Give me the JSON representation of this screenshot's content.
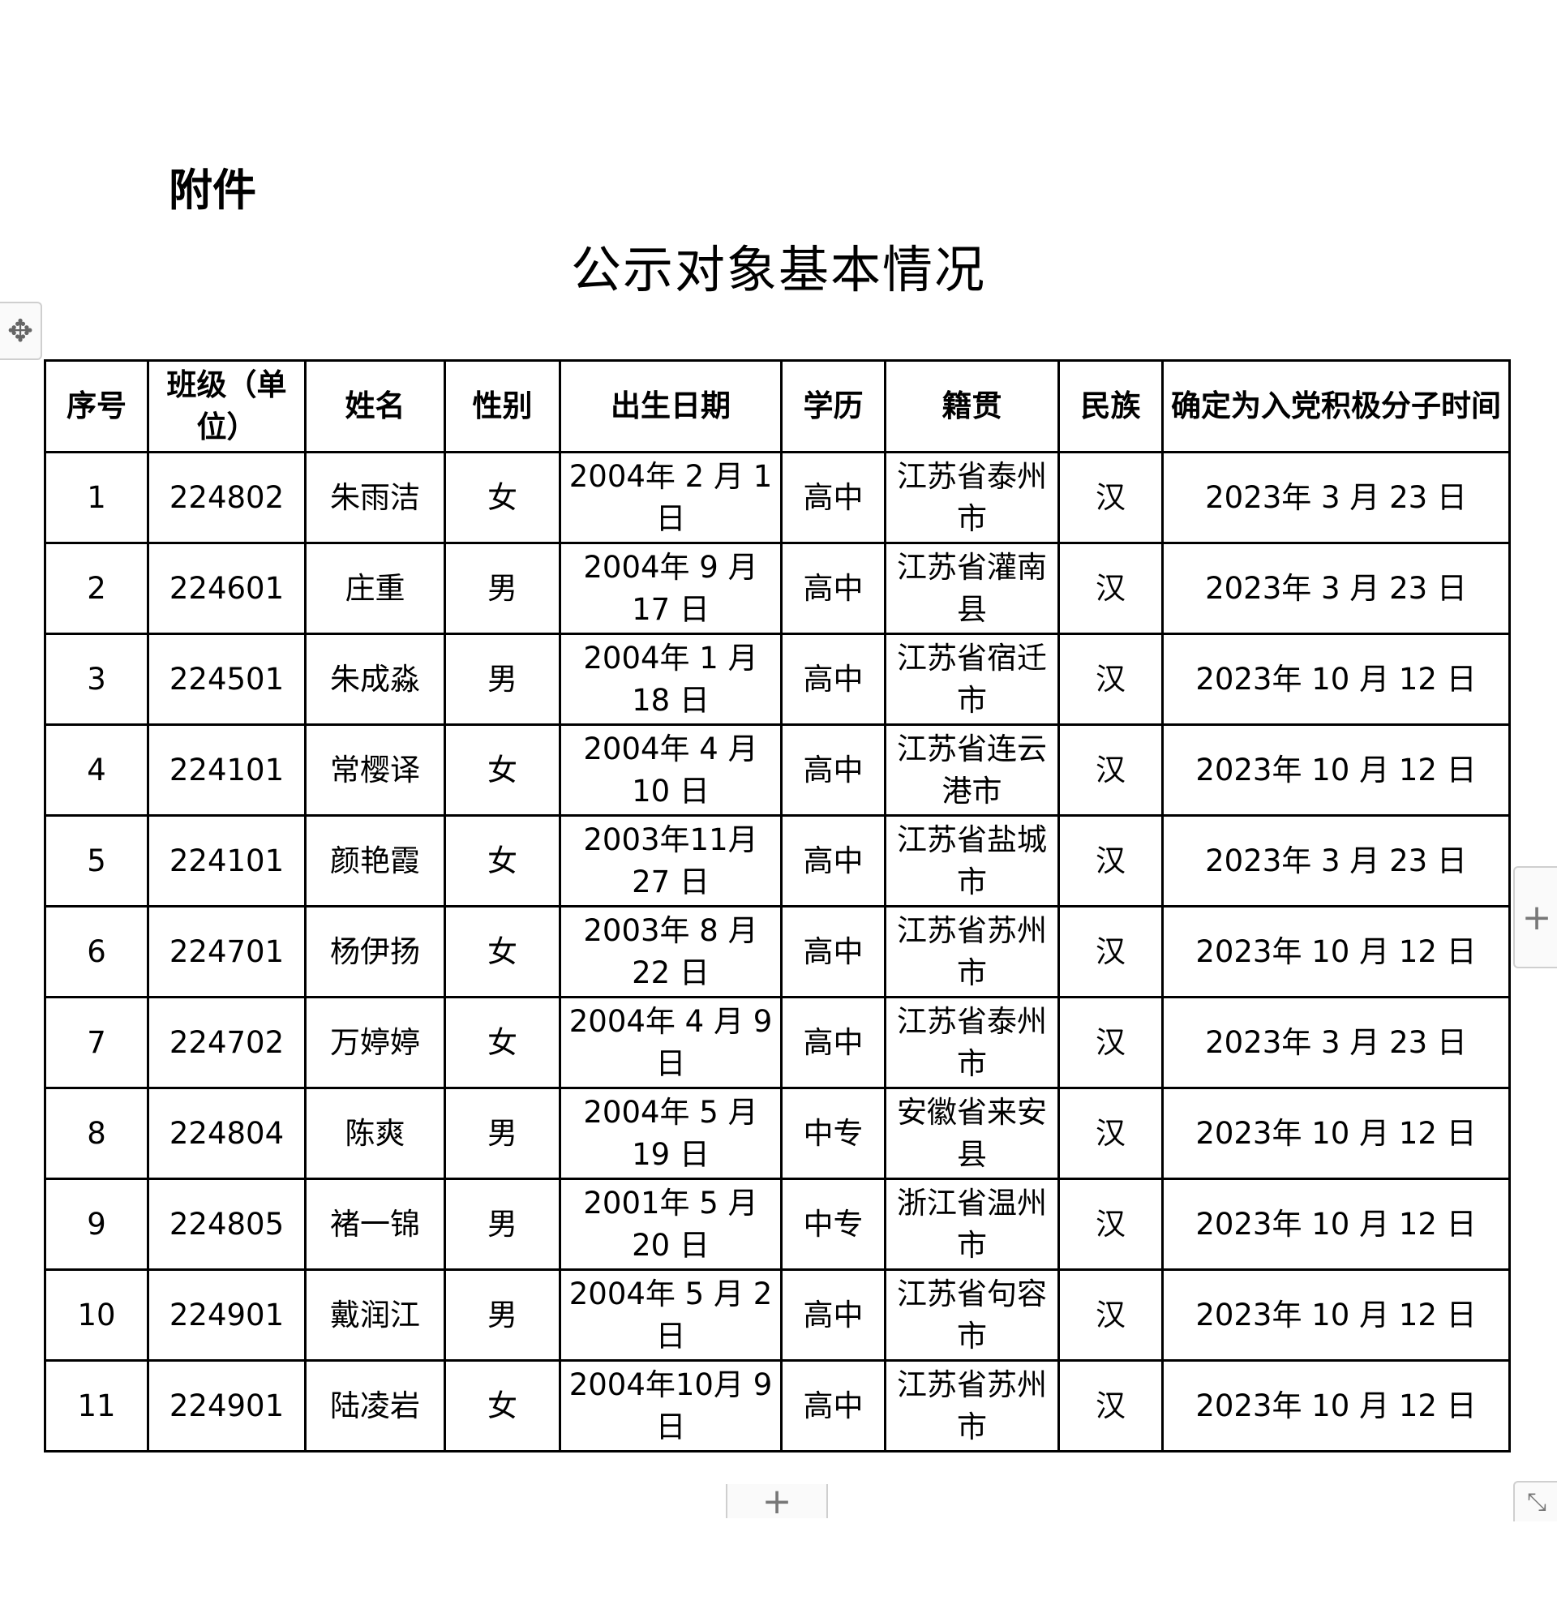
{
  "document": {
    "attachment_label": "附件",
    "title": "公示对象基本情况"
  },
  "table": {
    "headers": [
      "序号",
      "班级（单位）",
      "姓名",
      "性别",
      "出生日期",
      "学历",
      "籍贯",
      "民族",
      "确定为入党积极分子时间"
    ],
    "rows": [
      [
        "1",
        "224802",
        "朱雨洁",
        "女",
        "2004年 2 月 1 日",
        "高中",
        "江苏省泰州市",
        "汉",
        "2023年 3 月 23 日"
      ],
      [
        "2",
        "224601",
        "庄重",
        "男",
        "2004年 9 月 17 日",
        "高中",
        "江苏省灌南县",
        "汉",
        "2023年 3 月 23 日"
      ],
      [
        "3",
        "224501",
        "朱成淼",
        "男",
        "2004年 1 月 18 日",
        "高中",
        "江苏省宿迁市",
        "汉",
        "2023年 10 月 12 日"
      ],
      [
        "4",
        "224101",
        "常樱译",
        "女",
        "2004年 4 月 10 日",
        "高中",
        "江苏省连云港市",
        "汉",
        "2023年 10 月 12 日"
      ],
      [
        "5",
        "224101",
        "颜艳霞",
        "女",
        "2003年11月 27 日",
        "高中",
        "江苏省盐城市",
        "汉",
        "2023年 3 月 23 日"
      ],
      [
        "6",
        "224701",
        "杨伊扬",
        "女",
        "2003年 8 月 22 日",
        "高中",
        "江苏省苏州市",
        "汉",
        "2023年 10 月 12 日"
      ],
      [
        "7",
        "224702",
        "万婷婷",
        "女",
        "2004年 4 月 9 日",
        "高中",
        "江苏省泰州市",
        "汉",
        "2023年 3 月 23 日"
      ],
      [
        "8",
        "224804",
        "陈爽",
        "男",
        "2004年 5 月 19 日",
        "中专",
        "安徽省来安县",
        "汉",
        "2023年 10 月 12 日"
      ],
      [
        "9",
        "224805",
        "褚一锦",
        "男",
        "2001年 5 月 20 日",
        "中专",
        "浙江省温州市",
        "汉",
        "2023年 10 月 12 日"
      ],
      [
        "10",
        "224901",
        "戴润江",
        "男",
        "2004年 5 月 2 日",
        "高中",
        "江苏省句容市",
        "汉",
        "2023年 10 月 12 日"
      ],
      [
        "11",
        "224901",
        "陆凌岩",
        "女",
        "2004年10月 9 日",
        "高中",
        "江苏省苏州市",
        "汉",
        "2023年 10 月 12 日"
      ]
    ]
  },
  "controls": {
    "move_icon": "move-arrows-icon",
    "add_column_icon": "plus-icon",
    "add_row_icon": "plus-icon",
    "resize_icon": "resize-diagonal-icon"
  }
}
